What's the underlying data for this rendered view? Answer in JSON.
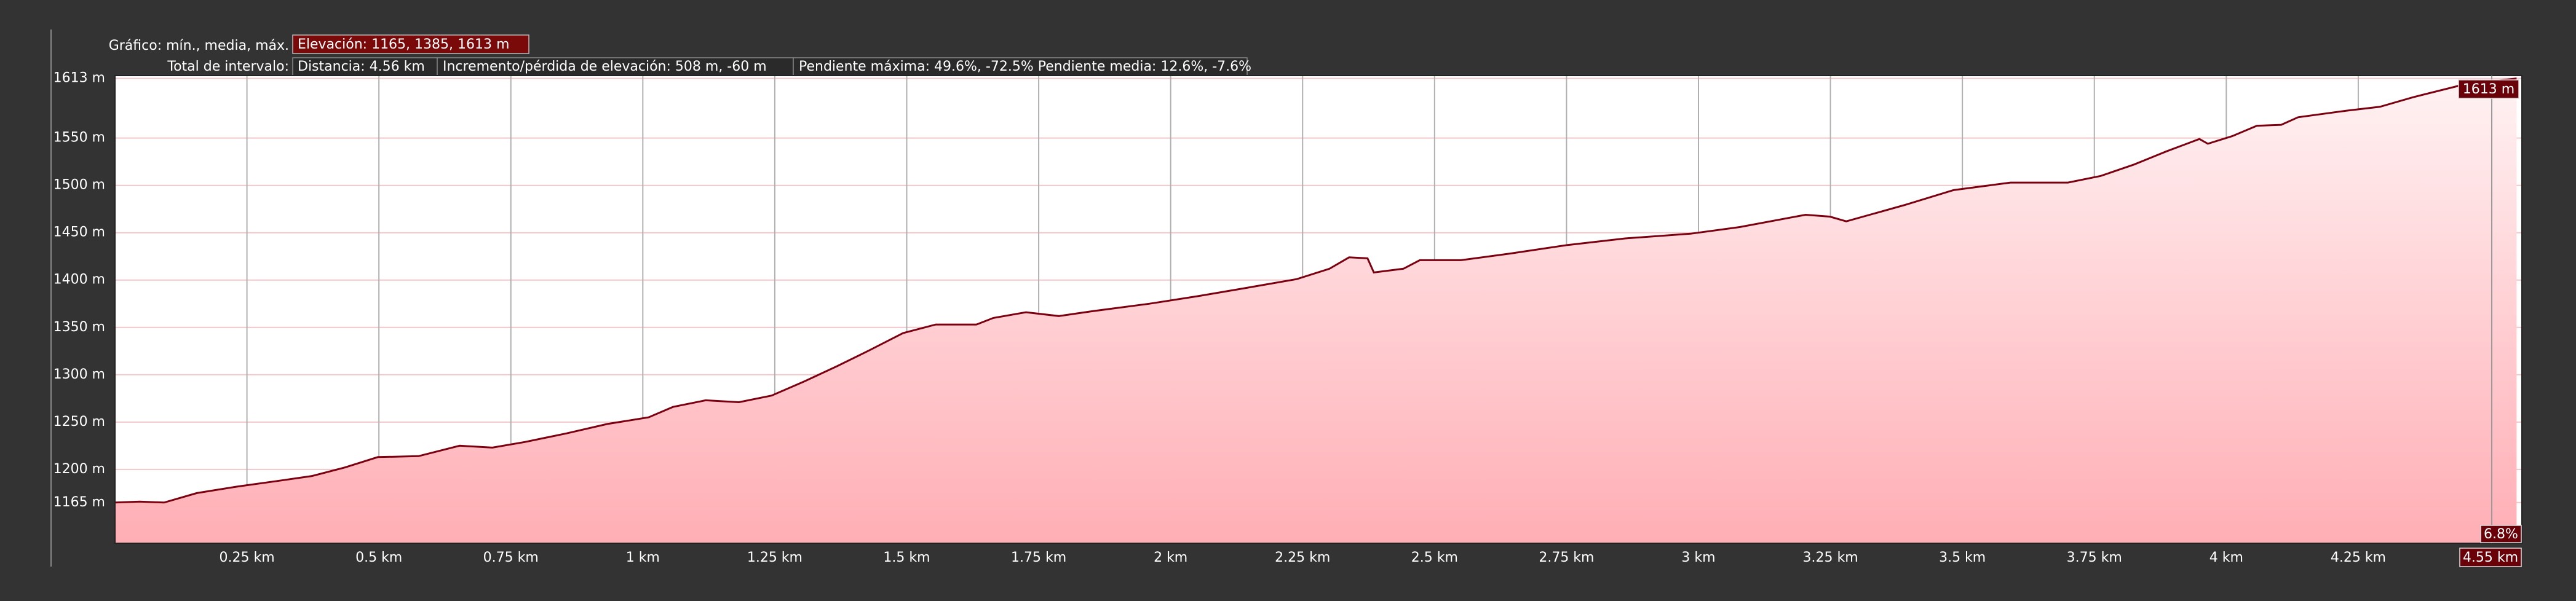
{
  "chart_data": {
    "type": "area",
    "stats": {
      "graph_label": "Gráfico: mín., media, máx.",
      "elevation": "Elevación: 1165, 1385, 1613 m",
      "range_label": "Total de intervalo:",
      "distance": "Distancia: 4.56 km",
      "gain_loss": "Incremento/pérdida de elevación: 508 m, -60 m",
      "slope": "Pendiente máxima: 49.6%, -72.5% Pendiente media: 12.6%, -7.6%"
    },
    "cursor": {
      "elevation": "1613 m",
      "slope": "6.8%",
      "distance": "4.55 km"
    },
    "x": [
      0,
      0.047,
      0.093,
      0.155,
      0.233,
      0.311,
      0.373,
      0.435,
      0.498,
      0.575,
      0.653,
      0.715,
      0.777,
      0.855,
      0.933,
      1.011,
      1.057,
      1.119,
      1.182,
      1.244,
      1.306,
      1.368,
      1.43,
      1.493,
      1.555,
      1.632,
      1.664,
      1.726,
      1.788,
      1.85,
      1.959,
      2.052,
      2.146,
      2.239,
      2.301,
      2.338,
      2.373,
      2.385,
      2.441,
      2.472,
      2.55,
      2.643,
      2.752,
      2.861,
      2.985,
      3.078,
      3.203,
      3.249,
      3.28,
      3.389,
      3.483,
      3.591,
      3.7,
      3.762,
      3.825,
      3.887,
      3.949,
      3.965,
      4.011,
      4.058,
      4.104,
      4.136,
      4.229,
      4.291,
      4.353,
      4.446,
      4.55
    ],
    "series": [
      {
        "name": "Elevación",
        "color": "#7a0010",
        "values": [
          1165,
          1166,
          1165,
          1175,
          1182,
          1188,
          1193,
          1202,
          1213,
          1214,
          1225,
          1223,
          1229,
          1238,
          1248,
          1255,
          1266,
          1273,
          1271,
          1278,
          1293,
          1309,
          1326,
          1344,
          1353,
          1353,
          1360,
          1366,
          1362,
          1367,
          1375,
          1383,
          1392,
          1401,
          1412,
          1424,
          1423,
          1408,
          1412,
          1421,
          1421,
          1428,
          1437,
          1444,
          1449,
          1456,
          1469,
          1467,
          1462,
          1479,
          1495,
          1503,
          1503,
          1510,
          1522,
          1536,
          1549,
          1544,
          1552,
          1563,
          1564,
          1572,
          1579,
          1583,
          1593,
          1606,
          1613
        ]
      }
    ],
    "xlim": [
      0,
      4.56
    ],
    "ylim": [
      1122,
      1616
    ],
    "xticks": [
      {
        "value": 0.25,
        "label": "0.25 km"
      },
      {
        "value": 0.5,
        "label": "0.5 km"
      },
      {
        "value": 0.75,
        "label": "0.75 km"
      },
      {
        "value": 1,
        "label": "1 km"
      },
      {
        "value": 1.25,
        "label": "1.25 km"
      },
      {
        "value": 1.5,
        "label": "1.5 km"
      },
      {
        "value": 1.75,
        "label": "1.75 km"
      },
      {
        "value": 2,
        "label": "2 km"
      },
      {
        "value": 2.25,
        "label": "2.25 km"
      },
      {
        "value": 2.5,
        "label": "2.5 km"
      },
      {
        "value": 2.75,
        "label": "2.75 km"
      },
      {
        "value": 3,
        "label": "3 km"
      },
      {
        "value": 3.25,
        "label": "3.25 km"
      },
      {
        "value": 3.5,
        "label": "3.5 km"
      },
      {
        "value": 3.75,
        "label": "3.75 km"
      },
      {
        "value": 4,
        "label": "4 km"
      },
      {
        "value": 4.25,
        "label": "4.25 km"
      }
    ],
    "yticks": [
      {
        "value": 1165,
        "label": "1165 m"
      },
      {
        "value": 1200,
        "label": "1200 m"
      },
      {
        "value": 1250,
        "label": "1250 m"
      },
      {
        "value": 1300,
        "label": "1300 m"
      },
      {
        "value": 1350,
        "label": "1350 m"
      },
      {
        "value": 1400,
        "label": "1400 m"
      },
      {
        "value": 1450,
        "label": "1450 m"
      },
      {
        "value": 1500,
        "label": "1500 m"
      },
      {
        "value": 1550,
        "label": "1550 m"
      },
      {
        "value": 1613,
        "label": "1613 m"
      }
    ],
    "grid": true
  }
}
